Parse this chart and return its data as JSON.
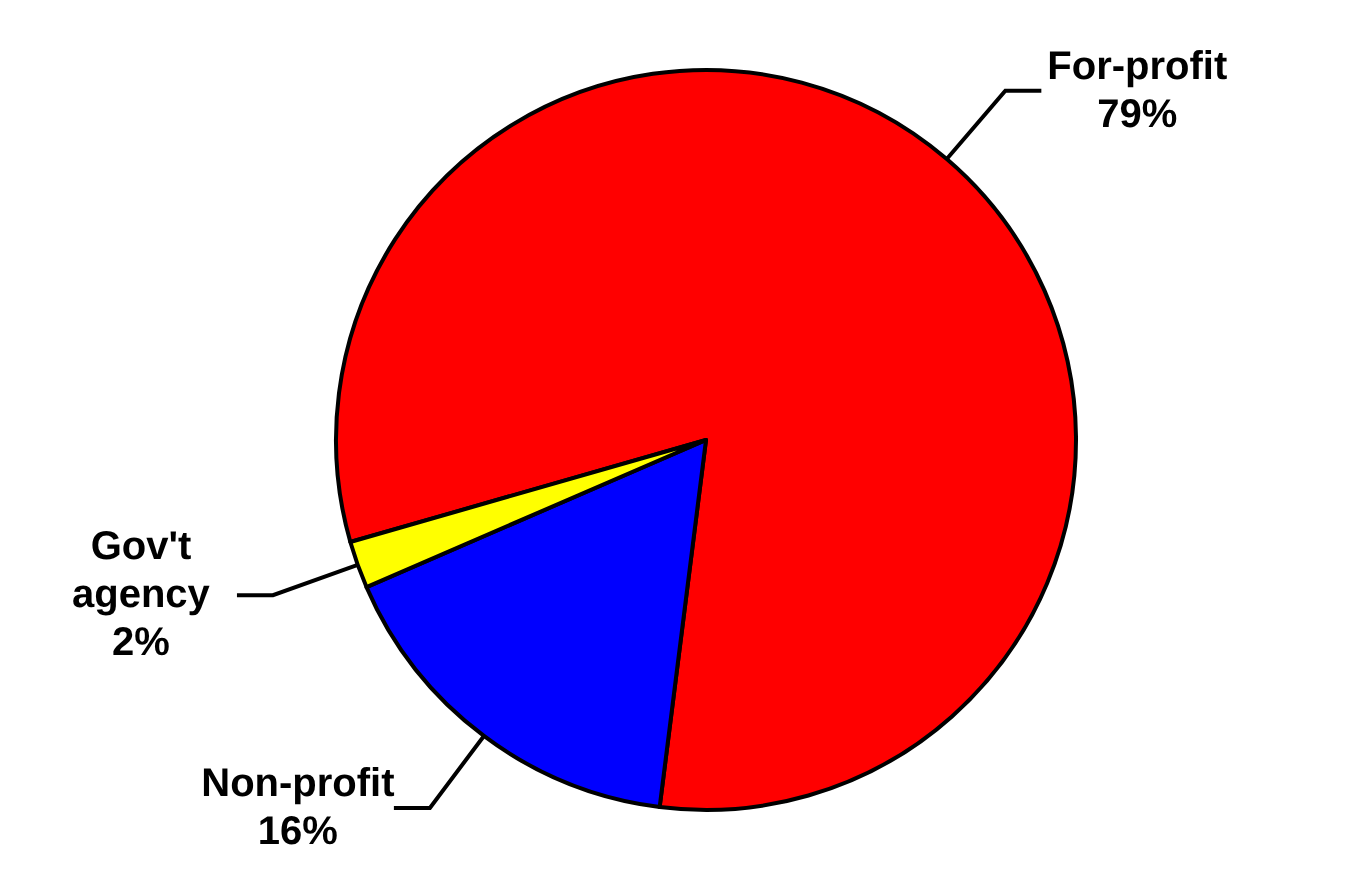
{
  "chart_data": {
    "type": "pie",
    "categories": [
      "For-profit",
      "Non-profit",
      "Gov't agency"
    ],
    "values": [
      79,
      16,
      2
    ],
    "value_labels": [
      "79%",
      "16%",
      "2%"
    ],
    "colors": [
      "#ff0000",
      "#0000ff",
      "#ffff00"
    ]
  }
}
